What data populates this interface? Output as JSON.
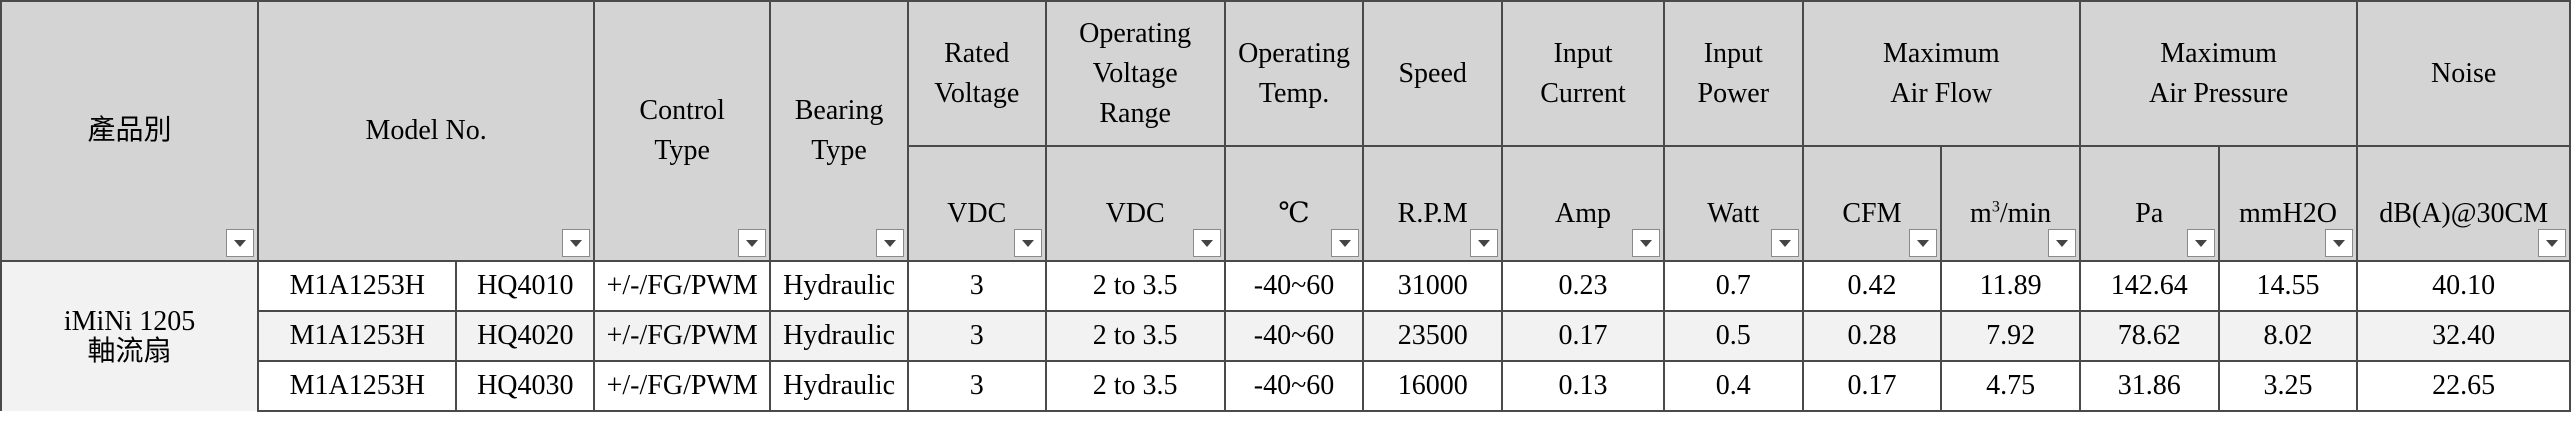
{
  "header": {
    "category": "產品別",
    "model": "Model No.",
    "control": "Control\nType",
    "bearing": "Bearing\nType",
    "rated_voltage": "Rated\nVoltage",
    "op_voltage": "Operating\nVoltage\nRange",
    "op_temp": "Operating\nTemp.",
    "speed": "Speed",
    "current": "Input\nCurrent",
    "power": "Input\nPower",
    "air_flow": "Maximum\nAir Flow",
    "air_pressure": "Maximum\nAir Pressure",
    "noise": "Noise"
  },
  "units": {
    "rated_voltage": "VDC",
    "op_voltage": "VDC",
    "op_temp": "℃",
    "speed": "R.P.M",
    "current": "Amp",
    "power": "Watt",
    "cfm": "CFM",
    "m3_base": "m",
    "m3_exp": "3",
    "m3_tail": "/min",
    "pa": "Pa",
    "mmh2o": "mmH2O",
    "noise": "dB(A)@30CM"
  },
  "category_label": "iMiNi 1205\n軸流扇",
  "rows": [
    {
      "model": "M1A1253H",
      "code": "HQ4010",
      "control": "+/-/FG/PWM",
      "bearing": "Hydraulic",
      "rated_v": "3",
      "op_v": "2 to 3.5",
      "temp": "-40~60",
      "speed": "31000",
      "current": "0.23",
      "power": "0.7",
      "cfm": "0.42",
      "m3min": "11.89",
      "pa": "142.64",
      "mmh2o": "14.55",
      "noise": "40.10"
    },
    {
      "model": "M1A1253H",
      "code": "HQ4020",
      "control": "+/-/FG/PWM",
      "bearing": "Hydraulic",
      "rated_v": "3",
      "op_v": "2 to 3.5",
      "temp": "-40~60",
      "speed": "23500",
      "current": "0.17",
      "power": "0.5",
      "cfm": "0.28",
      "m3min": "7.92",
      "pa": "78.62",
      "mmh2o": "8.02",
      "noise": "32.40"
    },
    {
      "model": "M1A1253H",
      "code": "HQ4030",
      "control": "+/-/FG/PWM",
      "bearing": "Hydraulic",
      "rated_v": "3",
      "op_v": "2 to 3.5",
      "temp": "-40~60",
      "speed": "16000",
      "current": "0.13",
      "power": "0.4",
      "cfm": "0.17",
      "m3min": "4.75",
      "pa": "31.86",
      "mmh2o": "3.25",
      "noise": "22.65"
    }
  ],
  "filter_icon": "dropdown-arrow-icon"
}
